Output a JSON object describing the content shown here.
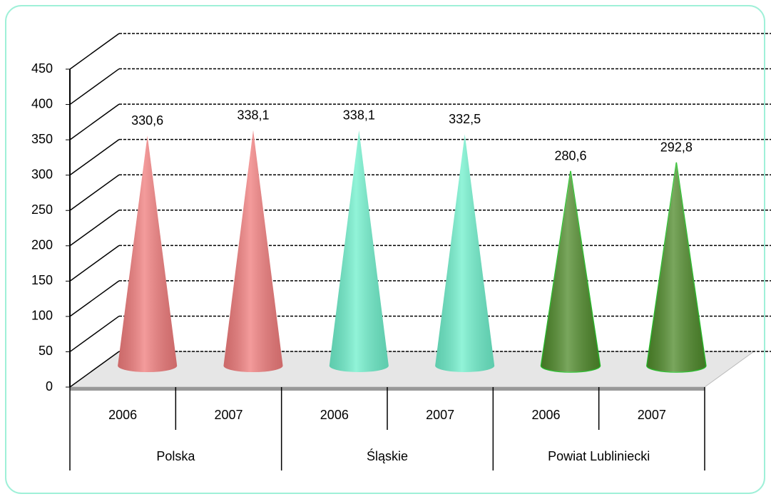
{
  "chart_data": {
    "type": "cone",
    "categories": [
      "2006",
      "2007",
      "2006",
      "2007",
      "2006",
      "2007"
    ],
    "groups": [
      "Polska",
      "Śląskie",
      "Powiat Lubliniecki"
    ],
    "values": [
      330.6,
      338.1,
      338.1,
      332.5,
      280.6,
      292.8
    ],
    "value_labels": [
      "330,6",
      "338,1",
      "338,1",
      "332,5",
      "280,6",
      "292,8"
    ],
    "colors": [
      "#f07c7c",
      "#f07c7c",
      "#6ff0cc",
      "#6ff0cc",
      "#4f8a2a",
      "#4f8a2a"
    ],
    "ylim": [
      0,
      450
    ],
    "yticks": [
      0,
      50,
      100,
      150,
      200,
      250,
      300,
      350,
      400,
      450
    ],
    "grid": true
  }
}
